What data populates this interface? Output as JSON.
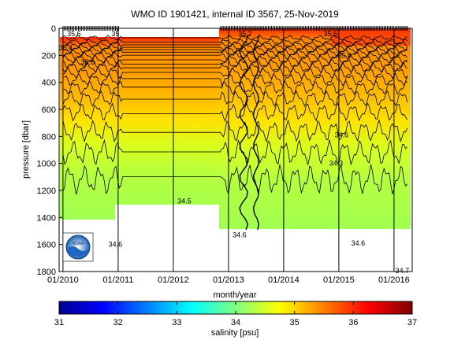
{
  "chart_data": [
    {
      "type": "heatmap",
      "title": "WMO ID 1901421, internal ID 3567, 25-Nov-2019",
      "xlabel": "month/year",
      "ylabel": "pressure [dbar]",
      "x_ticks": [
        "01/2010",
        "01/2011",
        "01/2012",
        "01/2013",
        "01/2014",
        "01/2015",
        "01/2016"
      ],
      "y_ticks": [
        0,
        200,
        400,
        600,
        800,
        1000,
        1200,
        1400,
        1600,
        1800
      ],
      "ylim": [
        1800,
        0
      ],
      "y_reversed": true,
      "grid_x": true,
      "contour_labels": [
        {
          "text": "35.6",
          "x_year": 2010.2,
          "p": 40
        },
        {
          "text": "35",
          "x_year": 2010.95,
          "p": 40
        },
        {
          "text": "35.4",
          "x_year": 2010.05,
          "p": 145
        },
        {
          "text": "35.6",
          "x_year": 2010.45,
          "p": 250
        },
        {
          "text": "35.2",
          "x_year": 2013.3,
          "p": 40
        },
        {
          "text": "35.6",
          "x_year": 2014.85,
          "p": 40
        },
        {
          "text": "35.4",
          "x_year": 2015.1,
          "p": 200
        },
        {
          "text": "34.6",
          "x_year": 2015.05,
          "p": 790
        },
        {
          "text": "34.3",
          "x_year": 2014.95,
          "p": 1000
        },
        {
          "text": "34.5",
          "x_year": 2012.2,
          "p": 1280
        },
        {
          "text": "34.6",
          "x_year": 2013.2,
          "p": 1530
        },
        {
          "text": "34.6",
          "x_year": 2010.25,
          "p": 1655
        },
        {
          "text": "34.6",
          "x_year": 2010.95,
          "p": 1600
        },
        {
          "text": "34.6",
          "x_year": 2015.35,
          "p": 1590
        },
        {
          "text": "34.7",
          "x_year": 2016.15,
          "p": 1795
        }
      ]
    },
    {
      "type": "heatmap",
      "title": "",
      "xlabel": "salinity [psu]",
      "colorbar_ticks": [
        31,
        32,
        33,
        34,
        35,
        36,
        37
      ],
      "range": [
        31,
        37
      ],
      "colormap": [
        "#00008f",
        "#0000ff",
        "#0080ff",
        "#00ffff",
        "#80ff80",
        "#ffff00",
        "#ff8000",
        "#ff0000",
        "#800000"
      ]
    }
  ],
  "logo": {
    "text": "NOAA"
  }
}
